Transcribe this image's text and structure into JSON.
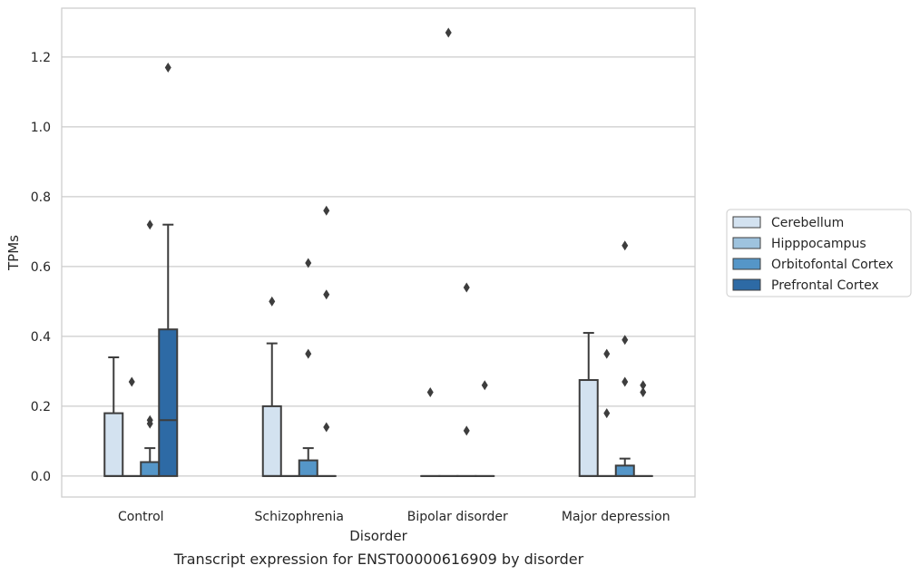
{
  "chart_data": {
    "type": "box",
    "caption": "Transcript expression for ENST00000616909 by disorder",
    "xlabel": "Disorder",
    "ylabel": "TPMs",
    "ylim": [
      -0.06,
      1.34
    ],
    "yticks": [
      "0.0",
      "0.2",
      "0.4",
      "0.6",
      "0.8",
      "1.0",
      "1.2"
    ],
    "ytick_values": [
      0.0,
      0.2,
      0.4,
      0.6,
      0.8,
      1.0,
      1.2
    ],
    "grid": "horizontal",
    "legend_position": "right",
    "categories": [
      "Control",
      "Schizophrenia",
      "Bipolar disorder",
      "Major depression"
    ],
    "series": [
      {
        "name": "Cerebellum",
        "color": "#d3e2f0",
        "boxes": [
          {
            "q1": 0.0,
            "median": 0.0,
            "q3": 0.18,
            "whislo": 0.0,
            "whishi": 0.34,
            "fliers": []
          },
          {
            "q1": 0.0,
            "median": 0.0,
            "q3": 0.2,
            "whislo": 0.0,
            "whishi": 0.38,
            "fliers": [
              0.5
            ]
          },
          {
            "q1": 0.0,
            "median": 0.0,
            "q3": 0.0,
            "whislo": 0.0,
            "whishi": 0.0,
            "fliers": [
              0.24
            ]
          },
          {
            "q1": 0.0,
            "median": 0.0,
            "q3": 0.275,
            "whislo": 0.0,
            "whishi": 0.41,
            "fliers": []
          }
        ]
      },
      {
        "name": "Hipppocampus",
        "color": "#9ec3de",
        "boxes": [
          {
            "q1": 0.0,
            "median": 0.0,
            "q3": 0.0,
            "whislo": 0.0,
            "whishi": 0.0,
            "fliers": [
              0.27
            ]
          },
          {
            "q1": 0.0,
            "median": 0.0,
            "q3": 0.0,
            "whislo": 0.0,
            "whishi": 0.0,
            "fliers": []
          },
          {
            "q1": 0.0,
            "median": 0.0,
            "q3": 0.0,
            "whislo": 0.0,
            "whishi": 0.0,
            "fliers": [
              1.27
            ]
          },
          {
            "q1": 0.0,
            "median": 0.0,
            "q3": 0.0,
            "whislo": 0.0,
            "whishi": 0.0,
            "fliers": [
              0.35,
              0.18
            ]
          }
        ]
      },
      {
        "name": "Orbitofontal Cortex",
        "color": "#5596c8",
        "boxes": [
          {
            "q1": 0.0,
            "median": 0.0,
            "q3": 0.04,
            "whislo": 0.0,
            "whishi": 0.08,
            "fliers": [
              0.72,
              0.16,
              0.15
            ]
          },
          {
            "q1": 0.0,
            "median": 0.0,
            "q3": 0.045,
            "whislo": 0.0,
            "whishi": 0.08,
            "fliers": [
              0.61,
              0.35
            ]
          },
          {
            "q1": 0.0,
            "median": 0.0,
            "q3": 0.0,
            "whislo": 0.0,
            "whishi": 0.0,
            "fliers": [
              0.54,
              0.13
            ]
          },
          {
            "q1": 0.0,
            "median": 0.0,
            "q3": 0.03,
            "whislo": 0.0,
            "whishi": 0.05,
            "fliers": [
              0.66,
              0.39,
              0.27
            ]
          }
        ]
      },
      {
        "name": "Prefrontal Cortex",
        "color": "#2d6aa5",
        "boxes": [
          {
            "q1": 0.0,
            "median": 0.16,
            "q3": 0.42,
            "whislo": 0.0,
            "whishi": 0.72,
            "fliers": [
              1.17
            ]
          },
          {
            "q1": 0.0,
            "median": 0.0,
            "q3": 0.0,
            "whislo": 0.0,
            "whishi": 0.0,
            "fliers": [
              0.76,
              0.52,
              0.14
            ]
          },
          {
            "q1": 0.0,
            "median": 0.0,
            "q3": 0.0,
            "whislo": 0.0,
            "whishi": 0.0,
            "fliers": [
              0.26
            ]
          },
          {
            "q1": 0.0,
            "median": 0.0,
            "q3": 0.0,
            "whislo": 0.0,
            "whishi": 0.0,
            "fliers": [
              0.26,
              0.24
            ]
          }
        ]
      }
    ]
  }
}
